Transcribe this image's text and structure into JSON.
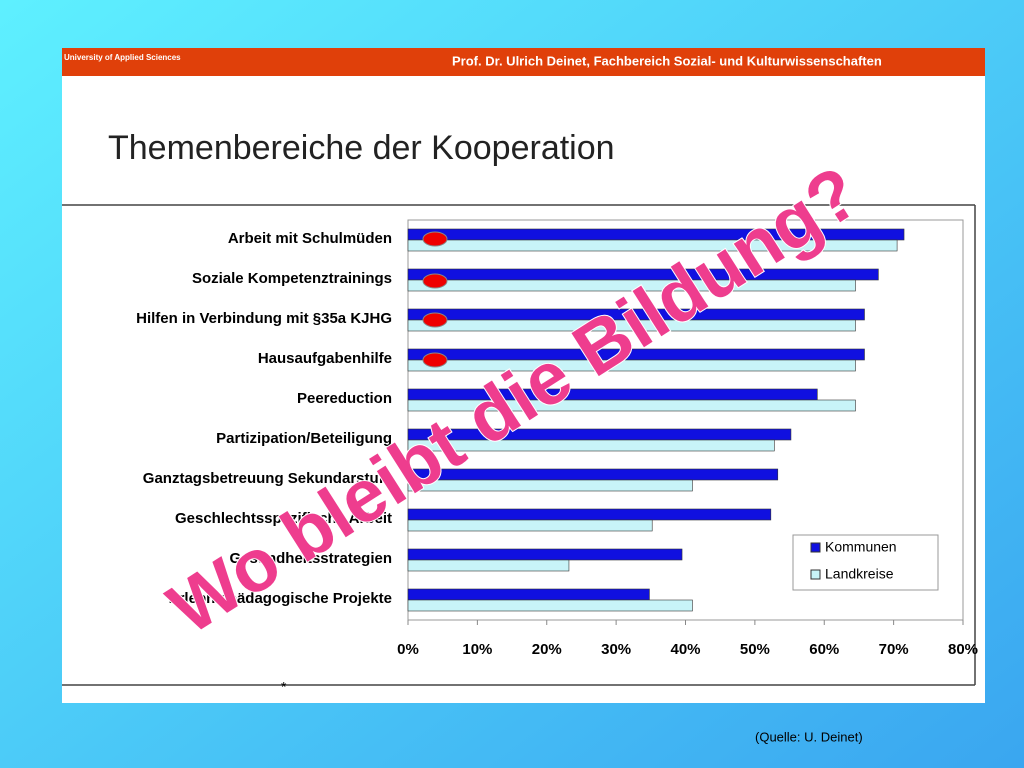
{
  "header": {
    "institution": "University of Applied Sciences",
    "author": "Prof. Dr. Ulrich Deinet, Fachbereich Sozial- und Kulturwissenschaften"
  },
  "chart_data": {
    "type": "hbar",
    "title": "Themenbereiche der Kooperation",
    "categories": [
      "Arbeit mit Schulmüden",
      "Soziale Kompetenztrainings",
      "Hilfen in Verbindung mit §35a KJHG",
      "Hausaufgabenhilfe",
      "Peereduction",
      "Partizipation/Beteiligung",
      "Ganztagsbetreuung Sekundarstufe",
      "Geschlechtsspezifische Arbeit",
      "Gesundheitsstrategien",
      "Erlebnispädagogische Projekte"
    ],
    "series": [
      {
        "name": "Kommunen",
        "color": "#1010e0",
        "values": [
          71.5,
          67.8,
          65.8,
          65.8,
          59,
          55.2,
          53.3,
          52.3,
          39.5,
          34.8
        ]
      },
      {
        "name": "Landkreise",
        "color": "#c8f4f8",
        "values": [
          70.5,
          64.5,
          64.5,
          64.5,
          64.5,
          52.8,
          41,
          35.2,
          23.2,
          41
        ]
      }
    ],
    "xlim": [
      0,
      80
    ],
    "xticks": [
      {
        "value": 0,
        "label": "0%"
      },
      {
        "value": 10,
        "label": "10%"
      },
      {
        "value": 20,
        "label": "20%"
      },
      {
        "value": 30,
        "label": "30%"
      },
      {
        "value": 40,
        "label": "40%"
      },
      {
        "value": 50,
        "label": "50%"
      },
      {
        "value": 60,
        "label": "60%"
      },
      {
        "value": 70,
        "label": "70%"
      },
      {
        "value": 80,
        "label": "80%"
      }
    ],
    "legend": "lower right",
    "annotation": "Wo bleibt die Bildung?",
    "footnote": "*"
  },
  "source": "(Quelle: U. Deinet)"
}
